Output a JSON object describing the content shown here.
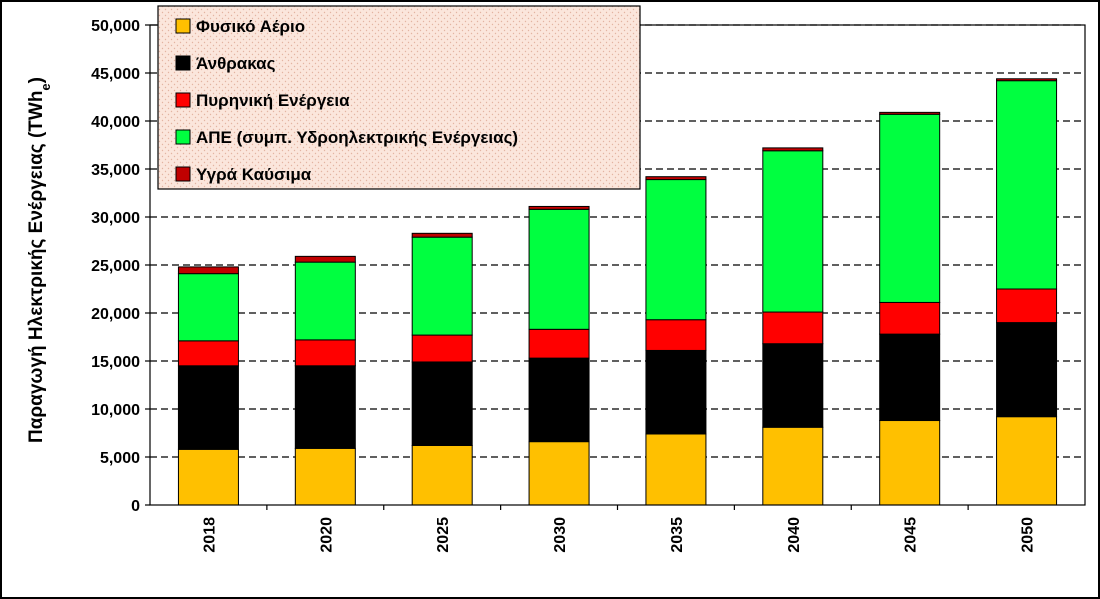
{
  "chart_data": {
    "type": "bar",
    "stacked": true,
    "categories": [
      "2018",
      "2020",
      "2025",
      "2030",
      "2035",
      "2040",
      "2045",
      "2050"
    ],
    "series": [
      {
        "name": "Φυσικό Αέριο",
        "color": "#FFC000",
        "values": [
          5800,
          5900,
          6200,
          6600,
          7400,
          8100,
          8800,
          9200
        ]
      },
      {
        "name": "Άνθρακας",
        "color": "#000000",
        "values": [
          8700,
          8600,
          8700,
          8700,
          8700,
          8700,
          9000,
          9800
        ]
      },
      {
        "name": "Πυρηνική Ενέργεια",
        "color": "#FF0000",
        "values": [
          2600,
          2700,
          2800,
          3000,
          3200,
          3300,
          3300,
          3500
        ]
      },
      {
        "name": "ΑΠΕ (συμπ. Υδροηλεκτρικής Ενέργειας)",
        "color": "#00FF40",
        "values": [
          7000,
          8100,
          10200,
          12500,
          14600,
          16800,
          19600,
          21700
        ]
      },
      {
        "name": "Υγρά Καύσιμα",
        "color": "#C00000",
        "values": [
          700,
          600,
          400,
          300,
          300,
          300,
          200,
          200
        ]
      }
    ],
    "ylabel_main": "Παραγωγή Ηλεκτρικής Ενέργειας",
    "ylabel_unit": "(TWh",
    "ylabel_unit_subscript": "e",
    "ylabel_unit_close": ")",
    "ylim": [
      0,
      50000
    ],
    "ytick_step": 5000,
    "ytick_labels": [
      "0",
      "5,000",
      "10,000",
      "15,000",
      "20,000",
      "25,000",
      "30,000",
      "35,000",
      "40,000",
      "45,000",
      "50,000"
    ],
    "grid": "dashed horizontal",
    "legend_position": "top-left"
  }
}
